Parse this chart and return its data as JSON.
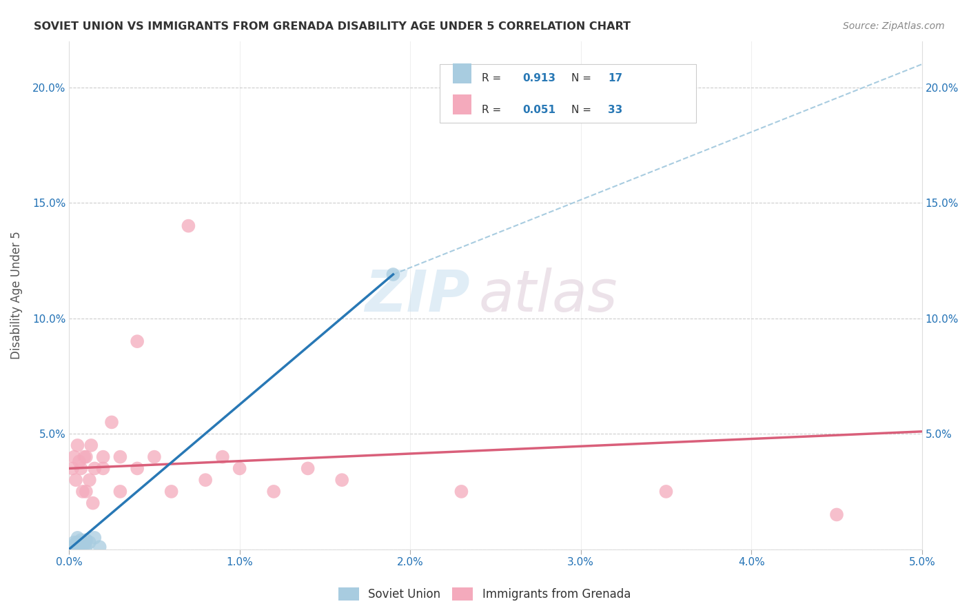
{
  "title": "SOVIET UNION VS IMMIGRANTS FROM GRENADA DISABILITY AGE UNDER 5 CORRELATION CHART",
  "source": "Source: ZipAtlas.com",
  "ylabel": "Disability Age Under 5",
  "watermark_zip": "ZIP",
  "watermark_atlas": "atlas",
  "xlim": [
    0.0,
    0.05
  ],
  "ylim": [
    0.0,
    0.22
  ],
  "xticks": [
    0.0,
    0.01,
    0.02,
    0.03,
    0.04,
    0.05
  ],
  "xtick_labels": [
    "0.0%",
    "1.0%",
    "2.0%",
    "3.0%",
    "4.0%",
    "5.0%"
  ],
  "yticks": [
    0.0,
    0.05,
    0.1,
    0.15,
    0.2
  ],
  "ytick_labels_left": [
    "",
    "5.0%",
    "10.0%",
    "15.0%",
    "20.0%"
  ],
  "ytick_labels_right": [
    "",
    "5.0%",
    "10.0%",
    "15.0%",
    "20.0%"
  ],
  "legend_r1": "R = 0.913",
  "legend_n1": "N = 17",
  "legend_r2": "R = 0.051",
  "legend_n2": "N = 33",
  "blue_scatter_color": "#a8cce0",
  "pink_scatter_color": "#f4aabc",
  "blue_line_color": "#2878b5",
  "pink_line_color": "#d95f7a",
  "dashed_line_color": "#a8cce0",
  "soviet_x": [
    0.0002,
    0.0003,
    0.0003,
    0.0004,
    0.0005,
    0.0005,
    0.0006,
    0.0007,
    0.0007,
    0.0008,
    0.0009,
    0.001,
    0.001,
    0.0012,
    0.0015,
    0.0018,
    0.019
  ],
  "soviet_y": [
    0.001,
    0.002,
    0.003,
    0.001,
    0.003,
    0.005,
    0.002,
    0.004,
    0.001,
    0.003,
    0.002,
    0.004,
    0.001,
    0.003,
    0.005,
    0.001,
    0.119
  ],
  "grenada_x": [
    0.0002,
    0.0003,
    0.0004,
    0.0005,
    0.0006,
    0.0007,
    0.0008,
    0.0009,
    0.001,
    0.001,
    0.0012,
    0.0013,
    0.0014,
    0.0015,
    0.002,
    0.002,
    0.0025,
    0.003,
    0.003,
    0.004,
    0.004,
    0.005,
    0.006,
    0.007,
    0.008,
    0.009,
    0.01,
    0.012,
    0.014,
    0.016,
    0.023,
    0.035,
    0.045
  ],
  "grenada_y": [
    0.035,
    0.04,
    0.03,
    0.045,
    0.038,
    0.035,
    0.025,
    0.04,
    0.04,
    0.025,
    0.03,
    0.045,
    0.02,
    0.035,
    0.04,
    0.035,
    0.055,
    0.04,
    0.025,
    0.09,
    0.035,
    0.04,
    0.025,
    0.14,
    0.03,
    0.04,
    0.035,
    0.025,
    0.035,
    0.03,
    0.025,
    0.025,
    0.015
  ],
  "blue_trendline_x": [
    0.0,
    0.019
  ],
  "blue_trendline_y": [
    0.0,
    0.119
  ],
  "pink_trendline_x": [
    0.0,
    0.05
  ],
  "pink_trendline_y": [
    0.035,
    0.051
  ],
  "dashed_trendline_x": [
    0.019,
    0.05
  ],
  "dashed_trendline_y": [
    0.119,
    0.21
  ]
}
